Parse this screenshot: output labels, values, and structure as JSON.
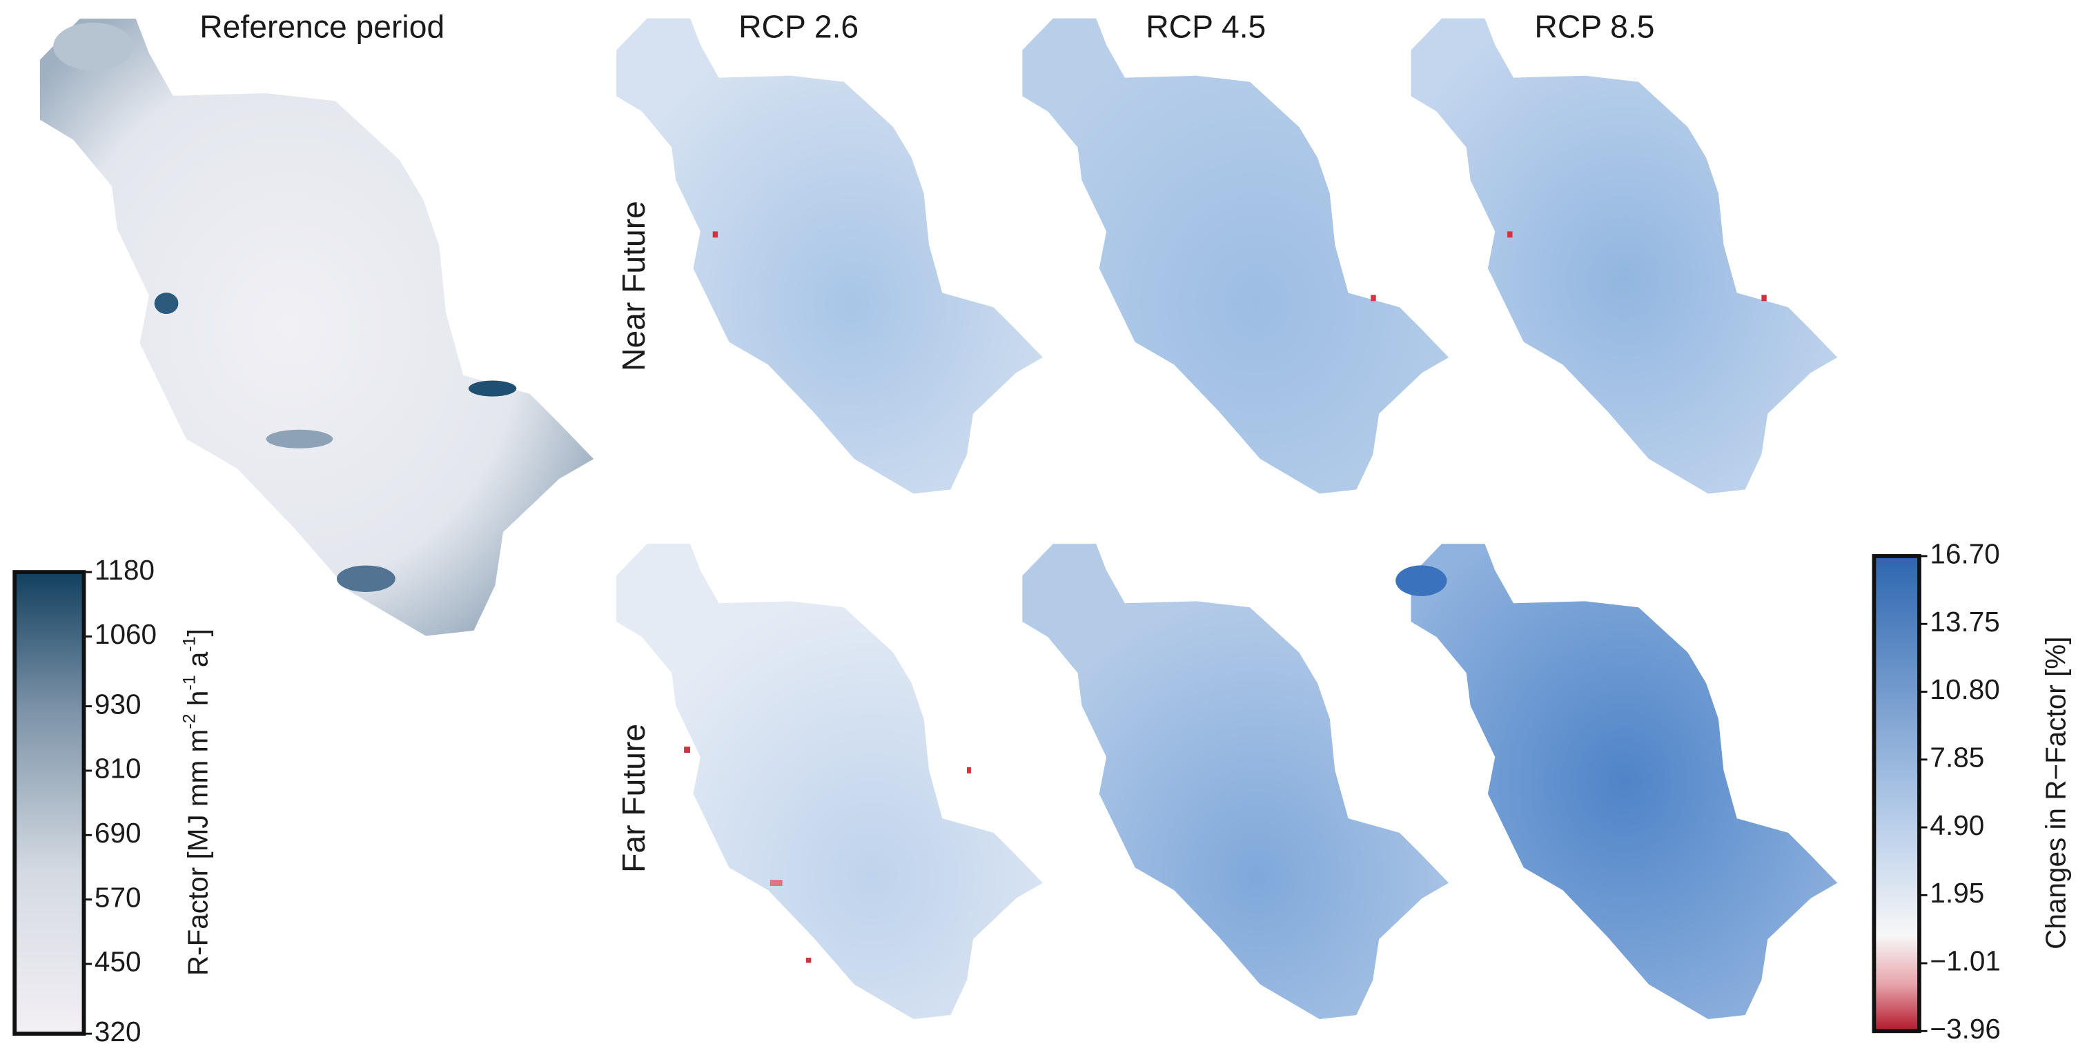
{
  "reference_title": "Reference period",
  "scenarios": [
    "RCP 2.6",
    "RCP 4.5",
    "RCP 8.5"
  ],
  "periods": [
    "Near Future",
    "Far Future"
  ],
  "reference_colorbar": {
    "label_parts": [
      "R-Factor [MJ mm m",
      "-2",
      " h",
      "-1",
      " a",
      "-1",
      "]"
    ],
    "ylim": [
      320,
      1180
    ],
    "yticks": [
      1180,
      1060,
      930,
      810,
      690,
      570,
      450,
      320
    ]
  },
  "change_colorbar": {
    "label": "Changes in R−Factor [%]",
    "ylim": [
      -3.96,
      16.7
    ],
    "yticks": [
      {
        "value": 16.7,
        "label": "16.70"
      },
      13.75,
      {
        "value": 10.8,
        "label": "10.80"
      },
      7.85,
      {
        "value": 4.9,
        "label": "4.90"
      },
      1.95,
      {
        "value": -1.01,
        "label": "−1.01"
      },
      {
        "value": -3.96,
        "label": "−3.96"
      }
    ]
  }
}
